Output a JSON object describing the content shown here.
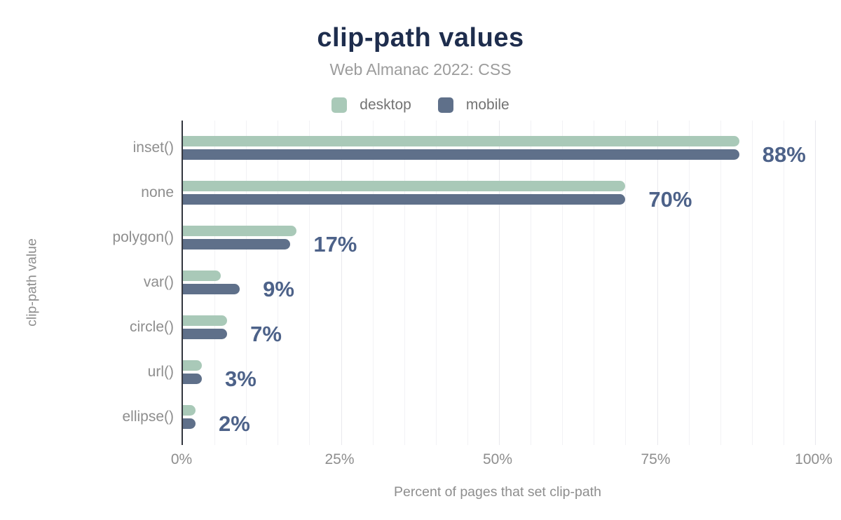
{
  "header": {
    "title": "clip-path values",
    "subtitle": "Web Almanac 2022: CSS"
  },
  "legend": {
    "items": [
      {
        "label": "desktop",
        "color": "#a9c9b8"
      },
      {
        "label": "mobile",
        "color": "#5f708a"
      }
    ]
  },
  "axes": {
    "x_title": "Percent of pages that set clip-path",
    "y_title": "clip-path value",
    "x_ticks": [
      {
        "label": "0%",
        "value": 0
      },
      {
        "label": "25%",
        "value": 25
      },
      {
        "label": "50%",
        "value": 50
      },
      {
        "label": "75%",
        "value": 75
      },
      {
        "label": "100%",
        "value": 100
      }
    ]
  },
  "colors": {
    "title": "#1e2d4d",
    "subtitle": "#9c9c9c",
    "legend_text": "#737373",
    "axis_text": "#8e8e8e",
    "value_label": "#4d6289",
    "desktop": "#a9c9b8",
    "mobile": "#5f708a",
    "axis_line": "#33363e",
    "gridline": "#f2f2f5",
    "gridline_major": "#e8e8ed"
  },
  "chart_data": {
    "type": "bar",
    "orientation": "horizontal",
    "title": "clip-path values",
    "subtitle": "Web Almanac 2022: CSS",
    "categories": [
      "inset()",
      "none",
      "polygon()",
      "var()",
      "circle()",
      "url()",
      "ellipse()"
    ],
    "series": [
      {
        "name": "desktop",
        "values": [
          88,
          70,
          18,
          6,
          7,
          3,
          2
        ]
      },
      {
        "name": "mobile",
        "values": [
          88,
          70,
          17,
          9,
          7,
          3,
          2
        ]
      }
    ],
    "value_labels": [
      "88%",
      "70%",
      "17%",
      "9%",
      "7%",
      "3%",
      "2%"
    ],
    "value_label_series": "mobile",
    "xlabel": "Percent of pages that set clip-path",
    "ylabel": "clip-path value",
    "xlim": [
      0,
      100
    ],
    "x_tick_labels": [
      "0%",
      "25%",
      "50%",
      "75%",
      "100%"
    ],
    "grid": "vertical, minor every 5%, major every 25%",
    "legend_position": "top"
  }
}
